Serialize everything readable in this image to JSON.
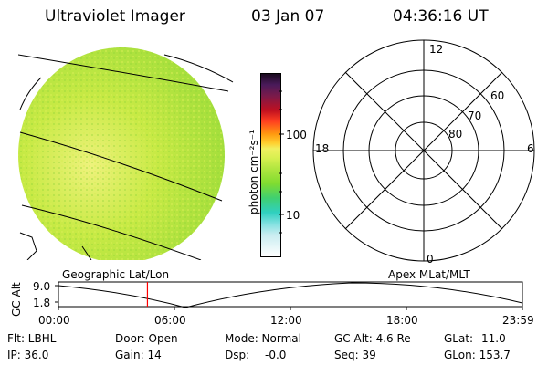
{
  "header": {
    "title": "Ultraviolet Imager",
    "date": "03 Jan 07",
    "time": "04:36:16 UT"
  },
  "colorbar": {
    "unit_label": "photon cm⁻²s⁻¹",
    "tick_labels": [
      "100",
      "10"
    ]
  },
  "polar_plot": {
    "mlt_labels": {
      "top": "12",
      "left": "18",
      "right": "6",
      "bottom": "0"
    },
    "lat_labels": [
      "60",
      "70",
      "80"
    ]
  },
  "map_labels": {
    "geographic": "Geographic Lat/Lon",
    "apex": "Apex MLat/MLT"
  },
  "timeline": {
    "axis_label": "GC Alt",
    "y_ticks": [
      "9.0",
      "1.8"
    ],
    "x_ticks": [
      "00:00",
      "06:00",
      "12:00",
      "18:00",
      "23:59"
    ],
    "current_time_hours": 4.6
  },
  "info": {
    "filter": "Flt: LBHL",
    "ip": "IP: 36.0",
    "door": "Door: Open",
    "gain": "Gain: 14",
    "mode": "Mode: Normal",
    "dsp": "Dsp:",
    "dsp_value": "-0.0",
    "gc_alt": "GC Alt: 4.6 Re",
    "seq": "Seq: 39",
    "glat": "GLat:",
    "glat_value": "11.0",
    "glon": "GLon: 153.7"
  },
  "colors": {
    "image_base": "#b8e63a",
    "image_light": "#e6f07a",
    "marker": "#ff0000"
  }
}
